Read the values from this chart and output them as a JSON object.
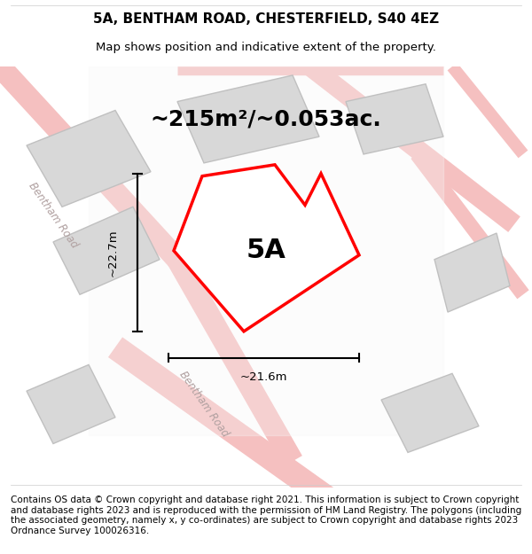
{
  "title": "5A, BENTHAM ROAD, CHESTERFIELD, S40 4EZ",
  "subtitle": "Map shows position and indicative extent of the property.",
  "area_label": "~215m²/~0.053ac.",
  "plot_label": "5A",
  "dim_height": "~22.7m",
  "dim_width": "~21.6m",
  "road_label1": "Bentham Road",
  "road_label2": "Bentham Road",
  "footer": "Contains OS data © Crown copyright and database right 2021. This information is subject to Crown copyright and database rights 2023 and is reproduced with the permission of HM Land Registry. The polygons (including the associated geometry, namely x, y co-ordinates) are subject to Crown copyright and database rights 2023 Ordnance Survey 100026316.",
  "bg_color": "#f5f5f5",
  "map_bg": "#f0eeee",
  "plot_color": "#ff0000",
  "plot_fill": "#ffffff",
  "building_color": "#d8d8d8",
  "road_line_color": "#f5c0c0",
  "dim_line_color": "#000000",
  "title_fontsize": 11,
  "subtitle_fontsize": 9.5,
  "area_fontsize": 18,
  "plot_label_fontsize": 22,
  "footer_fontsize": 7.5
}
